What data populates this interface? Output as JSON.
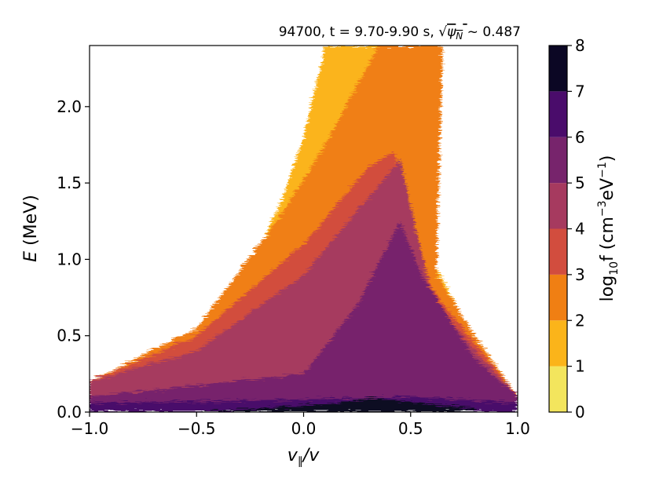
{
  "chart_data": {
    "type": "heatmap",
    "title": "94700, t = 9.70-9.90 s, √ψN ~  0.487",
    "title_parts": {
      "prefix": "94700, t = 9.70-9.90 s, ",
      "sqrt_symbol": "√",
      "psi": "ψ",
      "psi_sub": "N",
      "suffix": " ~  0.487"
    },
    "xlabel": "v∥/v",
    "xlabel_parts": {
      "v1": "v",
      "par": "∥",
      "rest": "/v"
    },
    "ylabel": "E (MeV)",
    "ylabel_parts": {
      "E": "E",
      "rest": " (MeV)"
    },
    "xlim": [
      -1.0,
      1.0
    ],
    "ylim": [
      0.0,
      2.4
    ],
    "x_ticks": [
      {
        "value": -1.0,
        "label": "−1.0"
      },
      {
        "value": -0.5,
        "label": "−0.5"
      },
      {
        "value": 0.0,
        "label": "0.0"
      },
      {
        "value": 0.5,
        "label": "0.5"
      },
      {
        "value": 1.0,
        "label": "1.0"
      }
    ],
    "y_ticks": [
      {
        "value": 0.0,
        "label": "0.0"
      },
      {
        "value": 0.5,
        "label": "0.5"
      },
      {
        "value": 1.0,
        "label": "1.0"
      },
      {
        "value": 1.5,
        "label": "1.5"
      },
      {
        "value": 2.0,
        "label": "2.0"
      }
    ],
    "colorbar": {
      "label": "log10f (cm−3eV−1)",
      "label_parts": {
        "log": "log",
        "sub": "10",
        "f": "f (cm",
        "sup1": "−3",
        "ev": "eV",
        "sup2": "−1",
        "close": ")"
      },
      "levels": [
        0,
        1,
        2,
        3,
        4,
        5,
        6,
        7,
        8
      ],
      "level_labels": [
        "0",
        "1",
        "2",
        "3",
        "4",
        "5",
        "6",
        "7",
        "8"
      ],
      "colors": [
        "#f3e55d",
        "#fbb41a",
        "#f07f13",
        "#d24d3e",
        "#a63a5f",
        "#77246c",
        "#4a0c6b",
        "#0b0724"
      ]
    },
    "contour_bands": [
      {
        "level": 1,
        "color": "#fbb41a",
        "approx_envelope": [
          [
            -0.55,
            0.3
          ],
          [
            -0.3,
            0.8
          ],
          [
            -0.1,
            1.4
          ],
          [
            0.0,
            1.8
          ],
          [
            0.1,
            2.4
          ],
          [
            0.6,
            2.4
          ],
          [
            0.6,
            1.0
          ],
          [
            0.75,
            0.6
          ],
          [
            1.0,
            0.1
          ]
        ]
      },
      {
        "level": 2,
        "color": "#f07f13",
        "approx_envelope": [
          [
            -1.0,
            0.2
          ],
          [
            -0.5,
            0.55
          ],
          [
            -0.1,
            1.3
          ],
          [
            0.1,
            1.75
          ],
          [
            0.35,
            2.4
          ],
          [
            0.65,
            2.4
          ],
          [
            0.62,
            0.9
          ],
          [
            0.8,
            0.5
          ],
          [
            1.0,
            0.1
          ]
        ]
      },
      {
        "level": 3,
        "color": "#d24d3e",
        "approx_envelope": [
          [
            -1.0,
            0.2
          ],
          [
            -0.5,
            0.5
          ],
          [
            0.0,
            1.1
          ],
          [
            0.3,
            1.6
          ],
          [
            0.42,
            1.7
          ],
          [
            0.6,
            0.8
          ],
          [
            0.8,
            0.45
          ],
          [
            1.0,
            0.1
          ]
        ]
      },
      {
        "level": 4,
        "color": "#a63a5f",
        "approx_envelope": [
          [
            -1.0,
            0.2
          ],
          [
            -0.5,
            0.4
          ],
          [
            0.0,
            0.9
          ],
          [
            0.3,
            1.4
          ],
          [
            0.45,
            1.65
          ],
          [
            0.6,
            0.75
          ],
          [
            0.8,
            0.4
          ],
          [
            1.0,
            0.1
          ]
        ]
      },
      {
        "level": 5,
        "color": "#77246c",
        "approx_envelope": [
          [
            -1.0,
            0.1
          ],
          [
            0.0,
            0.25
          ],
          [
            0.25,
            0.7
          ],
          [
            0.45,
            1.25
          ],
          [
            0.55,
            0.9
          ],
          [
            0.8,
            0.35
          ],
          [
            1.0,
            0.1
          ]
        ]
      },
      {
        "level": 6,
        "color": "#4a0c6b",
        "approx_envelope": [
          [
            -1.0,
            0.06
          ],
          [
            0.0,
            0.08
          ],
          [
            0.5,
            0.1
          ],
          [
            1.0,
            0.06
          ]
        ]
      },
      {
        "level": 7,
        "color": "#0b0724",
        "approx_envelope": [
          [
            -0.5,
            0.0
          ],
          [
            0.0,
            0.04
          ],
          [
            0.35,
            0.09
          ],
          [
            0.55,
            0.06
          ],
          [
            0.8,
            0.02
          ]
        ]
      }
    ],
    "grid": false,
    "legend": "colorbar-right"
  }
}
